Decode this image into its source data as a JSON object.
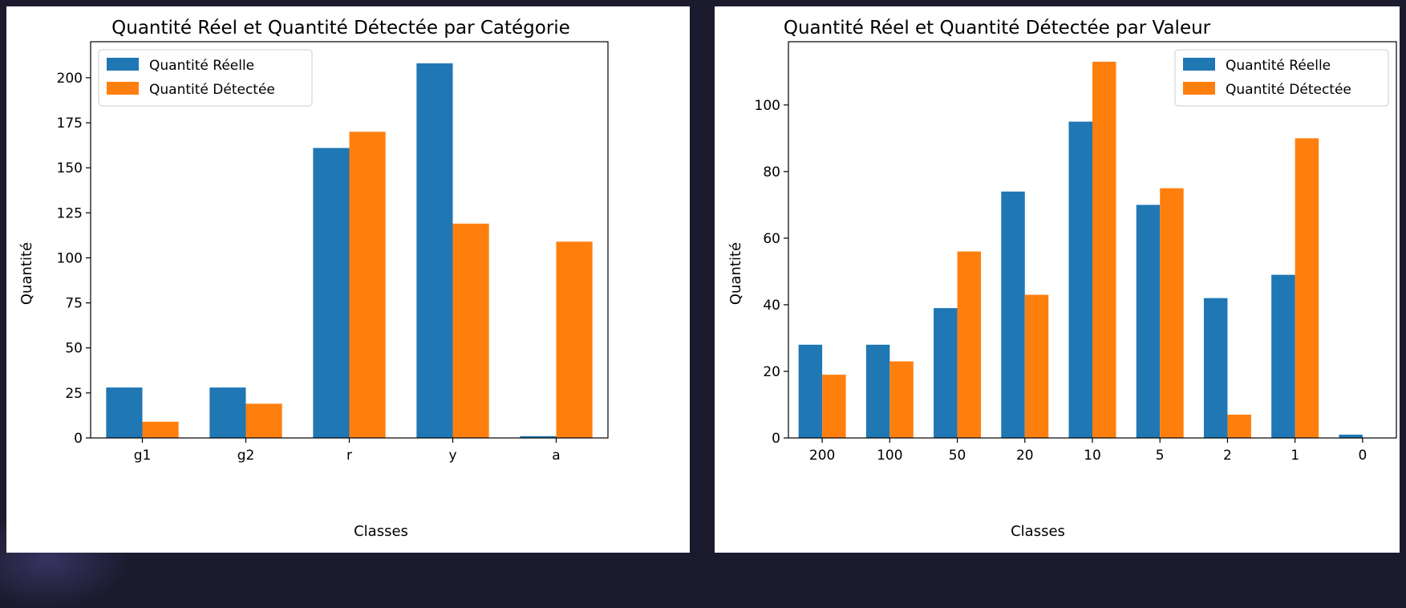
{
  "colors": {
    "real": "#1f77b4",
    "detected": "#ff7f0e",
    "background": "#1c1b2e"
  },
  "chart_data": [
    {
      "type": "bar",
      "title": "Quantité Réel et Quantité Détectée par Catégorie",
      "xlabel": "Classes",
      "ylabel": "Quantité",
      "categories": [
        "g1",
        "g2",
        "r",
        "y",
        "a"
      ],
      "ylim": [
        0,
        220
      ],
      "yticks": [
        0,
        25,
        50,
        75,
        100,
        125,
        150,
        175,
        200
      ],
      "legend_position": "top-left",
      "grid": false,
      "series": [
        {
          "name": "Quantité Réelle",
          "values": [
            28,
            28,
            161,
            208,
            1
          ]
        },
        {
          "name": "Quantité Détectée",
          "values": [
            9,
            19,
            170,
            119,
            109
          ]
        }
      ]
    },
    {
      "type": "bar",
      "title": "Quantité Réel et Quantité Détectée par Valeur",
      "xlabel": "Classes",
      "ylabel": "Quantité",
      "categories": [
        "200",
        "100",
        "50",
        "20",
        "10",
        "5",
        "2",
        "1",
        "0"
      ],
      "ylim": [
        0,
        119
      ],
      "yticks": [
        0,
        20,
        40,
        60,
        80,
        100
      ],
      "legend_position": "top-right",
      "grid": false,
      "series": [
        {
          "name": "Quantité Réelle",
          "values": [
            28,
            28,
            39,
            74,
            95,
            70,
            42,
            49,
            1
          ]
        },
        {
          "name": "Quantité Détectée",
          "values": [
            19,
            23,
            56,
            43,
            113,
            75,
            7,
            90,
            0
          ]
        }
      ]
    }
  ]
}
